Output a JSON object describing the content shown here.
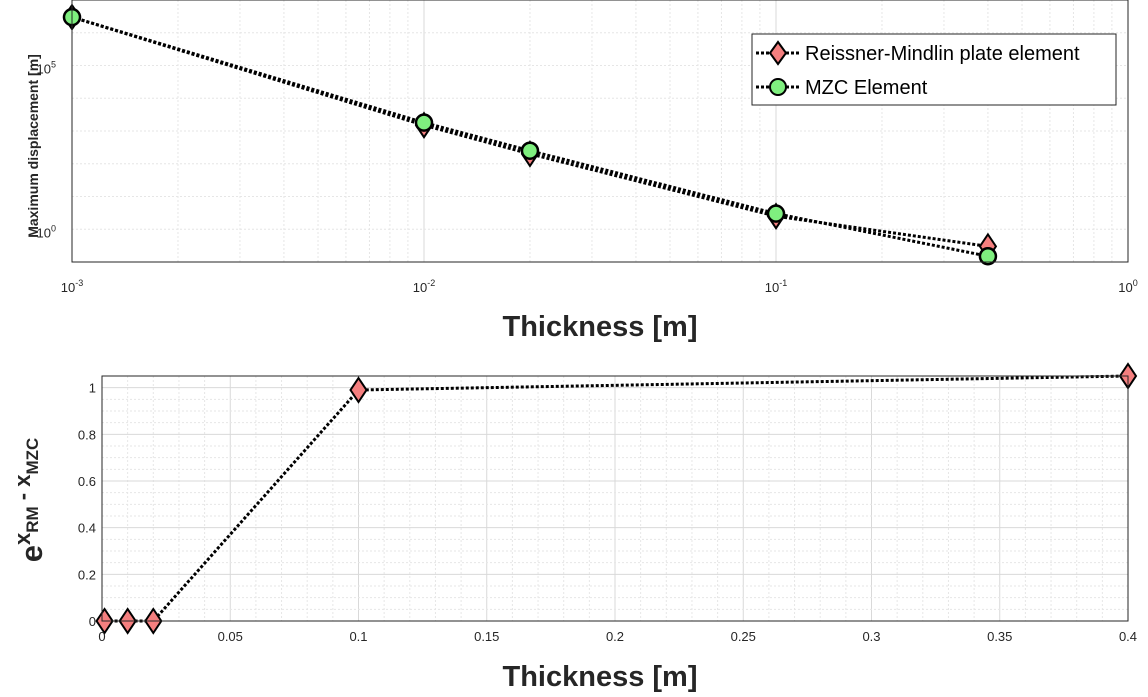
{
  "colors": {
    "marker_rm": "#f47f7f",
    "marker_mzc": "#7fef7f",
    "line": "#000000",
    "grid_major": "#d9d9d9",
    "grid_minor": "#e6e6e6",
    "axes": "#262626"
  },
  "chart_data": [
    {
      "type": "line",
      "x_scale": "log",
      "y_scale": "log",
      "xlabel": "Thickness [m]",
      "ylabel": "Maximum displacement [m]",
      "xlim": [
        0.001,
        1
      ],
      "ylim": [
        0.1,
        10000000
      ],
      "x_ticks": [
        {
          "base": "10",
          "exp": "-3",
          "value": 0.001
        },
        {
          "base": "10",
          "exp": "-2",
          "value": 0.01
        },
        {
          "base": "10",
          "exp": "-1",
          "value": 0.1
        },
        {
          "base": "10",
          "exp": "0",
          "value": 1
        }
      ],
      "y_ticks": [
        {
          "base": "10",
          "exp": "5",
          "value": 100000
        },
        {
          "base": "10",
          "exp": "0",
          "value": 1
        }
      ],
      "grid": true,
      "legend_position": "top-right",
      "series": [
        {
          "name": "Reissner-Mindlin plate element",
          "marker": "diamond",
          "color": "#f47f7f",
          "x": [
            0.001,
            0.01,
            0.02,
            0.1,
            0.4
          ],
          "y": [
            3000000,
            1500,
            200,
            2.5,
            0.3
          ]
        },
        {
          "name": "MZC Element",
          "marker": "circle",
          "color": "#7fef7f",
          "x": [
            0.001,
            0.01,
            0.02,
            0.1,
            0.4
          ],
          "y": [
            3000000,
            1800,
            250,
            3,
            0.15
          ]
        }
      ]
    },
    {
      "type": "line",
      "xlabel": "Thickness [m]",
      "ylabel": {
        "base": "e",
        "sup": "x",
        "sup_sub": "RM",
        "mid": " - x",
        "mid_sub": "MZC"
      },
      "xlim": [
        0,
        0.4
      ],
      "ylim": [
        0,
        1.05
      ],
      "x_ticks": [
        "0",
        "0.05",
        "0.1",
        "0.15",
        "0.2",
        "0.25",
        "0.3",
        "0.35",
        "0.4"
      ],
      "y_ticks": [
        "0",
        "0.2",
        "0.4",
        "0.6",
        "0.8",
        "1"
      ],
      "grid": true,
      "series": [
        {
          "marker": "diamond",
          "color": "#f47f7f",
          "x": [
            0.001,
            0.01,
            0.02,
            0.1,
            0.4
          ],
          "y": [
            0,
            0,
            0,
            0.99,
            1.05
          ]
        }
      ]
    }
  ]
}
